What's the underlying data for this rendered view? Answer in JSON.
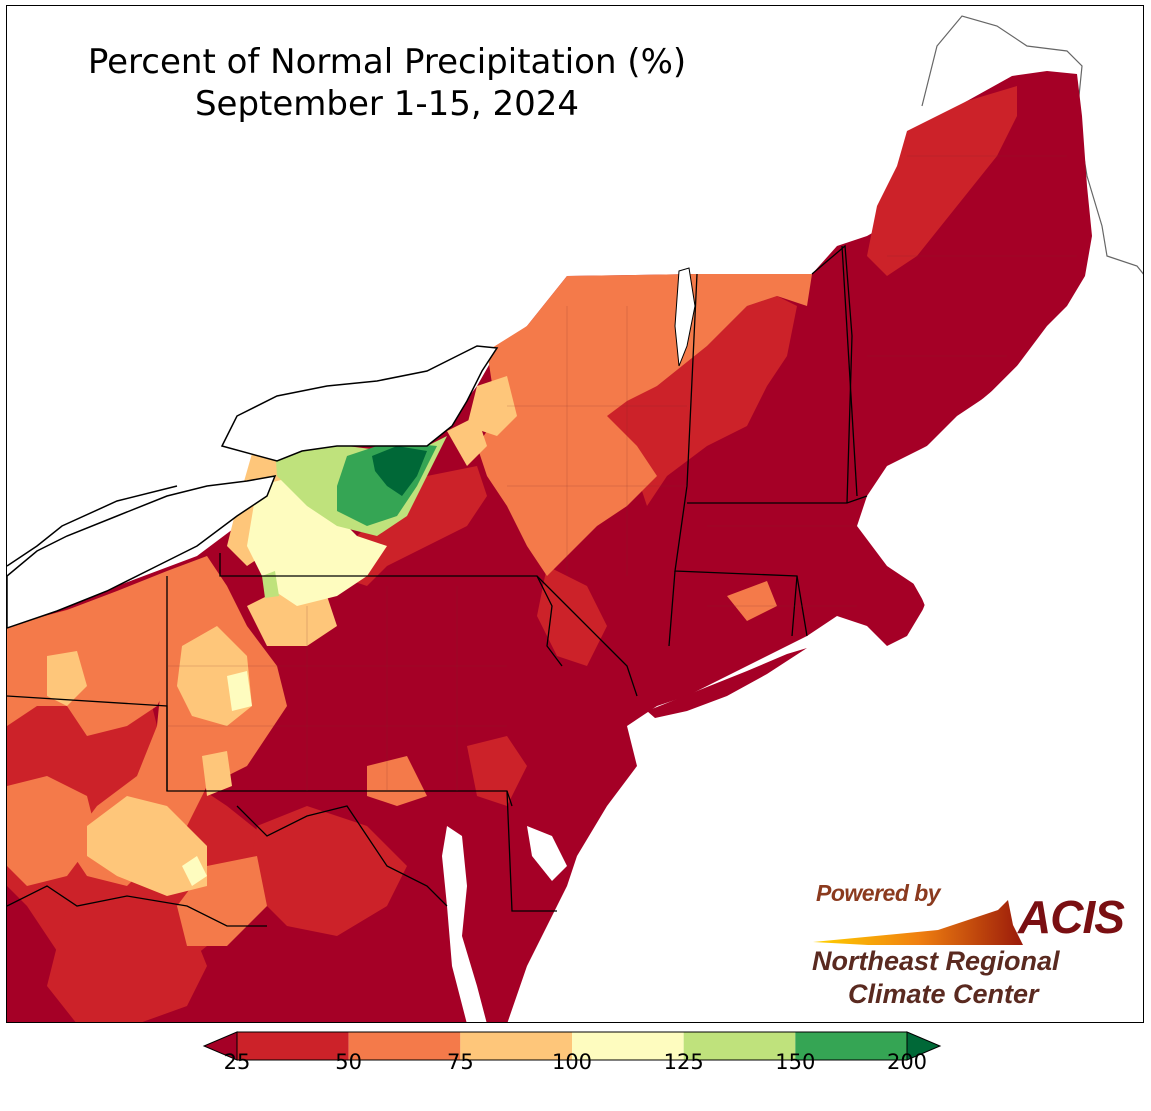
{
  "title": {
    "line1": "Percent of Normal Precipitation (%)",
    "line2": "September 1-15, 2024"
  },
  "logo": {
    "powered_by": "Powered by",
    "acis": "ACIS",
    "org_line1": "Northeast Regional",
    "org_line2": "Climate Center"
  },
  "legend": {
    "ticks": [
      "25",
      "50",
      "75",
      "100",
      "125",
      "150",
      "200"
    ],
    "bins": [
      {
        "range": "<25",
        "color": "#a50026"
      },
      {
        "range": "25-50",
        "color": "#cc2229"
      },
      {
        "range": "50-75",
        "color": "#f47a4a"
      },
      {
        "range": "75-100",
        "color": "#fec67a"
      },
      {
        "range": "100-125",
        "color": "#fefcbf"
      },
      {
        "range": "125-150",
        "color": "#bfe27c"
      },
      {
        "range": "150-200",
        "color": "#35a554"
      },
      {
        "range": ">200",
        "color": "#006837"
      }
    ]
  },
  "colors": {
    "lake": "#ffffff",
    "ocean": "#ffffff",
    "border": "#000000"
  }
}
